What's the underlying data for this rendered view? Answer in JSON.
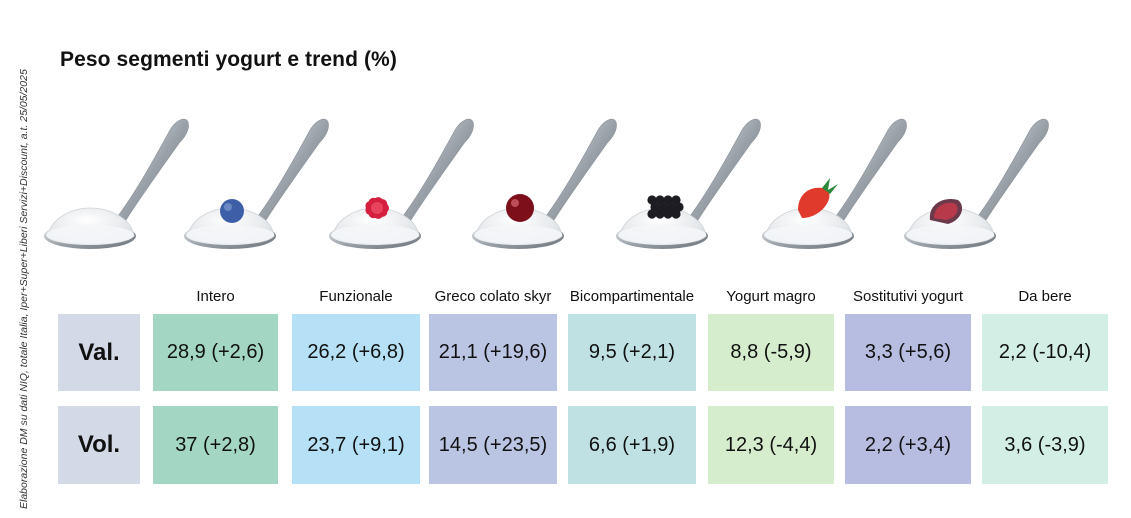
{
  "source_note": "Elaborazione DM su dati NIQ, totale Italia, Iper+Super+Liberi Servizi+Discount, a.t. 25/05/2025",
  "chart_data": {
    "type": "table",
    "title": "Peso segmenti yogurt e trend (%)",
    "columns": [
      "Intero",
      "Funzionale",
      "Greco colato skyr",
      "Bicompartimentale",
      "Yogurt magro",
      "Sostitutivi yogurt",
      "Da bere"
    ],
    "rows": [
      {
        "label": "Val.",
        "cells": [
          "28,9 (+2,6)",
          "26,2 (+6,8)",
          "21,1 (+19,6)",
          "9,5 (+2,1)",
          "8,8 (-5,9)",
          "3,3 (+5,6)",
          "2,2 (-10,4)"
        ],
        "share": [
          28.9,
          26.2,
          21.1,
          9.5,
          8.8,
          3.3,
          2.2
        ],
        "trend": [
          2.6,
          6.8,
          19.6,
          2.1,
          -5.9,
          5.6,
          -10.4
        ]
      },
      {
        "label": "Vol.",
        "cells": [
          "37 (+2,8)",
          "23,7 (+9,1)",
          "14,5 (+23,5)",
          "6,6 (+1,9)",
          "12,3 (-4,4)",
          "2,2 (+3,4)",
          "3,6 (-3,9)"
        ],
        "share": [
          37,
          23.7,
          14.5,
          6.6,
          12.3,
          2.2,
          3.6
        ],
        "trend": [
          2.8,
          9.1,
          23.5,
          1.9,
          -4.4,
          3.4,
          -3.9
        ]
      }
    ],
    "colors": {
      "label_column": "#d3d9e6",
      "columns": [
        "#a3d7c3",
        "#b5e0f6",
        "#bac5e3",
        "#bfe1e3",
        "#d5eccd",
        "#b6bde1",
        "#d3eee4"
      ]
    }
  },
  "spoons": [
    {
      "topping": "plain-yogurt-icon",
      "color": "#ffffff"
    },
    {
      "topping": "blueberry-icon",
      "color": "#3d5fa8"
    },
    {
      "topping": "raspberry-icon",
      "color": "#d41f3f"
    },
    {
      "topping": "cherry-icon",
      "color": "#7c0f1a"
    },
    {
      "topping": "blackberry-icon",
      "color": "#1c1c22"
    },
    {
      "topping": "strawberry-icon",
      "color": "#e03a2c"
    },
    {
      "topping": "fig-icon",
      "color": "#b8394a"
    }
  ]
}
